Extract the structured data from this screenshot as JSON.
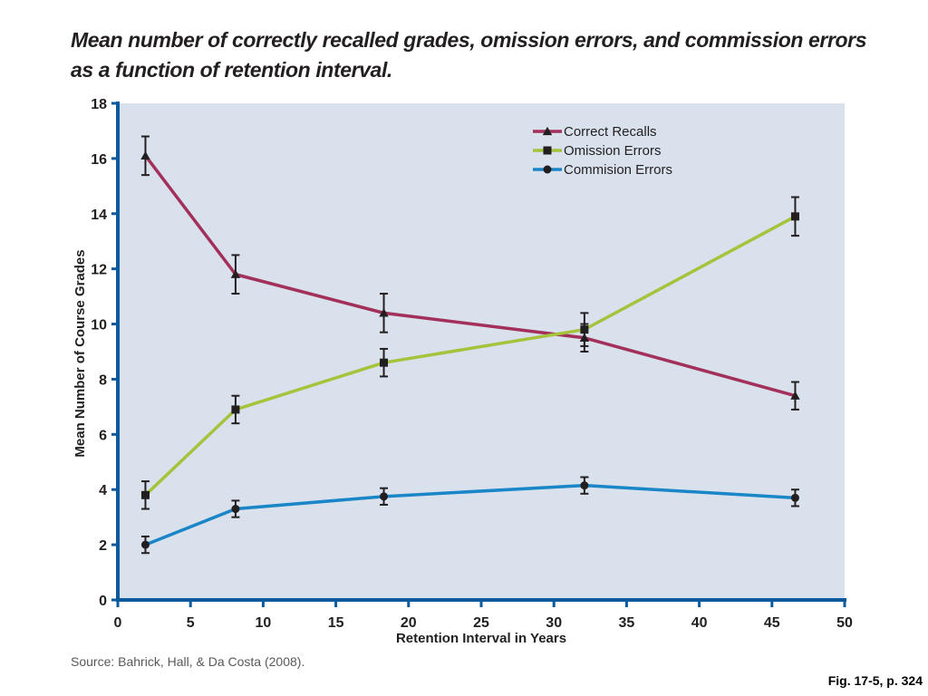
{
  "figure_ref": "Fig. 17-5, p. 324",
  "source": "Source: Bahrick, Hall, & Da Costa (2008).",
  "chart_data": {
    "type": "line",
    "title": "Mean number of correctly recalled grades, omission errors, and commission errors as a function of retention interval.",
    "xlabel": "Retention Interval in Years",
    "ylabel": "Mean Number of Course Grades",
    "xlim": [
      0,
      50
    ],
    "ylim": [
      0,
      18
    ],
    "xticks": [
      0,
      5,
      10,
      15,
      20,
      25,
      30,
      35,
      40,
      45,
      50
    ],
    "yticks": [
      0,
      2,
      4,
      6,
      8,
      10,
      12,
      14,
      16,
      18
    ],
    "grid": false,
    "legend_position": "top-right",
    "background_color": "#d9e1ec",
    "axis_color": "#0a5a9c",
    "series": [
      {
        "name": "Correct Recalls",
        "color": "#a3305a",
        "marker": "triangle",
        "x": [
          1.9,
          8.1,
          18.3,
          32.1,
          46.6
        ],
        "y": [
          16.1,
          11.8,
          10.4,
          9.5,
          7.4
        ],
        "err": [
          0.7,
          0.7,
          0.7,
          0.5,
          0.5
        ]
      },
      {
        "name": "Omission Errors",
        "color": "#a4c43c",
        "marker": "square",
        "x": [
          1.9,
          8.1,
          18.3,
          32.1,
          46.6
        ],
        "y": [
          3.8,
          6.9,
          8.6,
          9.8,
          13.9
        ],
        "err": [
          0.5,
          0.5,
          0.5,
          0.6,
          0.7
        ]
      },
      {
        "name": "Commision Errors",
        "color": "#1a86c8",
        "marker": "circle",
        "x": [
          1.9,
          8.1,
          18.3,
          32.1,
          46.6
        ],
        "y": [
          2.0,
          3.3,
          3.75,
          4.15,
          3.7
        ],
        "err": [
          0.3,
          0.3,
          0.3,
          0.3,
          0.3
        ]
      }
    ]
  }
}
